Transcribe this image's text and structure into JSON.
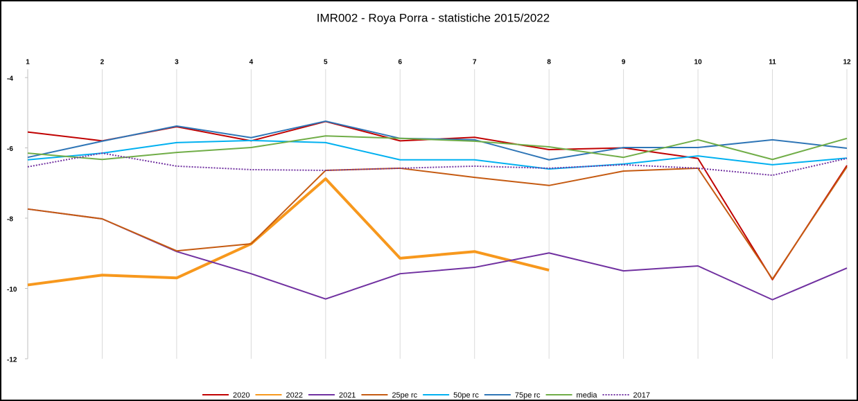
{
  "chart_data": {
    "type": "line",
    "title": "IMR002  - Roya Porra - statistiche 2015/2022",
    "x": [
      1,
      2,
      3,
      4,
      5,
      6,
      7,
      8,
      9,
      10,
      11,
      12
    ],
    "xlim": [
      1,
      12
    ],
    "xticks": [
      1,
      2,
      3,
      4,
      5,
      6,
      7,
      8,
      9,
      10,
      11,
      12
    ],
    "ylim": [
      -12,
      -4
    ],
    "yticks": [
      -4,
      -6,
      -8,
      -10,
      -12
    ],
    "grid": true,
    "legend": "bottom",
    "series": [
      {
        "name": "2020",
        "color": "#c00000",
        "linewidth": 2,
        "values": [
          -5.55,
          -5.8,
          -5.4,
          -5.8,
          -5.25,
          -5.8,
          -5.7,
          -6.05,
          -6.0,
          -6.3,
          -9.75,
          -6.5
        ]
      },
      {
        "name": "2022",
        "color": "#f7981d",
        "linewidth": 4,
        "values": [
          -9.9,
          -9.62,
          -9.7,
          -8.73,
          -6.88,
          -9.14,
          -8.95,
          -9.48,
          null,
          null,
          null,
          null
        ]
      },
      {
        "name": "2021",
        "color": "#7030a0",
        "linewidth": 2,
        "values": [
          -7.74,
          -8.02,
          -8.95,
          -9.58,
          -10.3,
          -9.58,
          -9.4,
          -8.99,
          -9.5,
          -9.36,
          -10.32,
          -9.42
        ]
      },
      {
        "name": "25pe rc",
        "color": "#c55a11",
        "linewidth": 2,
        "values": [
          -7.74,
          -8.02,
          -8.93,
          -8.73,
          -6.64,
          -6.58,
          -6.84,
          -7.07,
          -6.66,
          -6.58,
          -9.73,
          -6.54
        ]
      },
      {
        "name": "50pe rc",
        "color": "#00b0f0",
        "linewidth": 2,
        "values": [
          -6.34,
          -6.15,
          -5.85,
          -5.79,
          -5.85,
          -6.34,
          -6.34,
          -6.6,
          -6.46,
          -6.23,
          -6.48,
          -6.29
        ]
      },
      {
        "name": "75pe rc",
        "color": "#2e75b6",
        "linewidth": 2,
        "values": [
          -6.27,
          -5.81,
          -5.38,
          -5.71,
          -5.24,
          -5.73,
          -5.77,
          -6.34,
          -5.99,
          -5.99,
          -5.77,
          -6.01
        ]
      },
      {
        "name": "media",
        "color": "#70ad47",
        "linewidth": 2,
        "values": [
          -6.15,
          -6.33,
          -6.13,
          -5.99,
          -5.66,
          -5.73,
          -5.81,
          -5.97,
          -6.27,
          -5.77,
          -6.33,
          -5.73
        ]
      },
      {
        "name": "2017",
        "color": "#7030a0",
        "linewidth": 2,
        "dash": true,
        "values": [
          -6.54,
          -6.15,
          -6.52,
          -6.62,
          -6.64,
          -6.58,
          -6.52,
          -6.58,
          -6.48,
          -6.58,
          -6.78,
          -6.3
        ]
      }
    ]
  }
}
